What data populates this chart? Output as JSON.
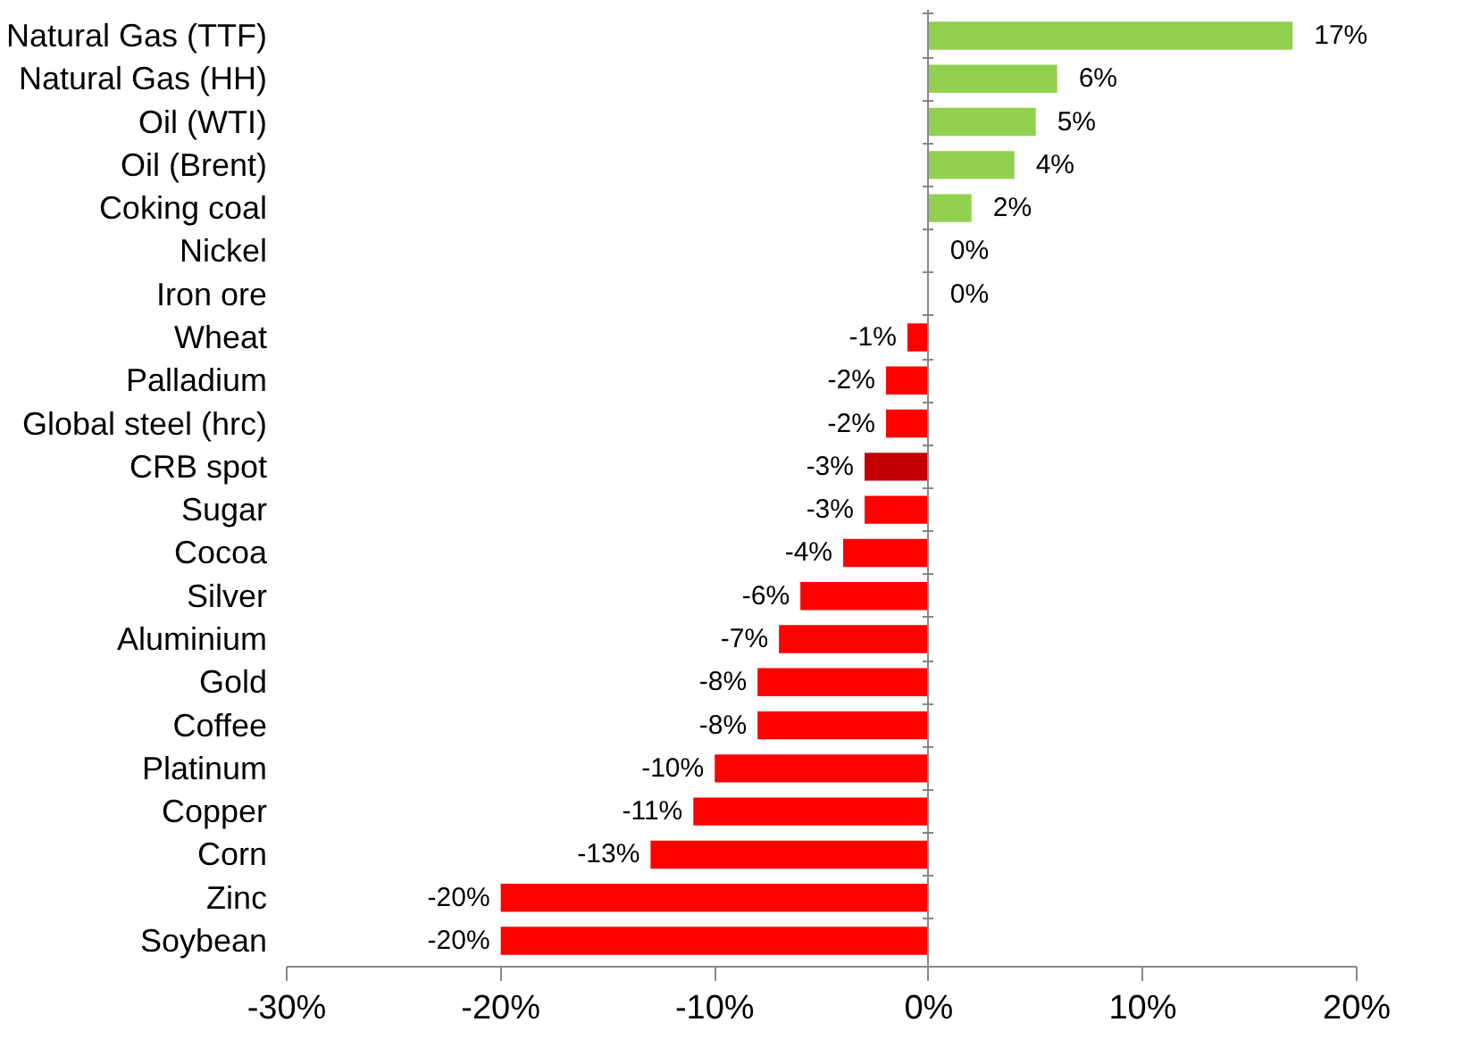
{
  "chart_data": {
    "type": "bar",
    "orientation": "horizontal",
    "categories": [
      "Natural Gas (TTF)",
      "Natural Gas (HH)",
      "Oil (WTI)",
      "Oil (Brent)",
      "Coking coal",
      "Nickel",
      "Iron ore",
      "Wheat",
      "Palladium",
      "Global steel (hrc)",
      "CRB spot",
      "Sugar",
      "Cocoa",
      "Silver",
      "Aluminium",
      "Gold",
      "Coffee",
      "Platinum",
      "Copper",
      "Corn",
      "Zinc",
      "Soybean"
    ],
    "values": [
      17,
      6,
      5,
      4,
      2,
      0,
      0,
      -1,
      -2,
      -2,
      -3,
      -3,
      -4,
      -6,
      -7,
      -8,
      -8,
      -10,
      -11,
      -13,
      -20,
      -20
    ],
    "value_labels": [
      "17%",
      "6%",
      "5%",
      "4%",
      "2%",
      "0%",
      "0%",
      "-1%",
      "-2%",
      "-2%",
      "-3%",
      "-3%",
      "-4%",
      "-6%",
      "-7%",
      "-8%",
      "-8%",
      "-10%",
      "-11%",
      "-13%",
      "-20%",
      "-20%"
    ],
    "colors": [
      "#92d050",
      "#92d050",
      "#92d050",
      "#92d050",
      "#92d050",
      "#92d050",
      "#92d050",
      "#ff0000",
      "#ff0000",
      "#ff0000",
      "#c00000",
      "#ff0000",
      "#ff0000",
      "#ff0000",
      "#ff0000",
      "#ff0000",
      "#ff0000",
      "#ff0000",
      "#ff0000",
      "#ff0000",
      "#ff0000",
      "#ff0000"
    ],
    "xlim": [
      -30,
      20
    ],
    "xticks": [
      {
        "value": -30,
        "label": "-30%"
      },
      {
        "value": -20,
        "label": "-20%"
      },
      {
        "value": -10,
        "label": "-10%"
      },
      {
        "value": 0,
        "label": "0%"
      },
      {
        "value": 10,
        "label": "10%"
      },
      {
        "value": 20,
        "label": "20%"
      }
    ]
  }
}
